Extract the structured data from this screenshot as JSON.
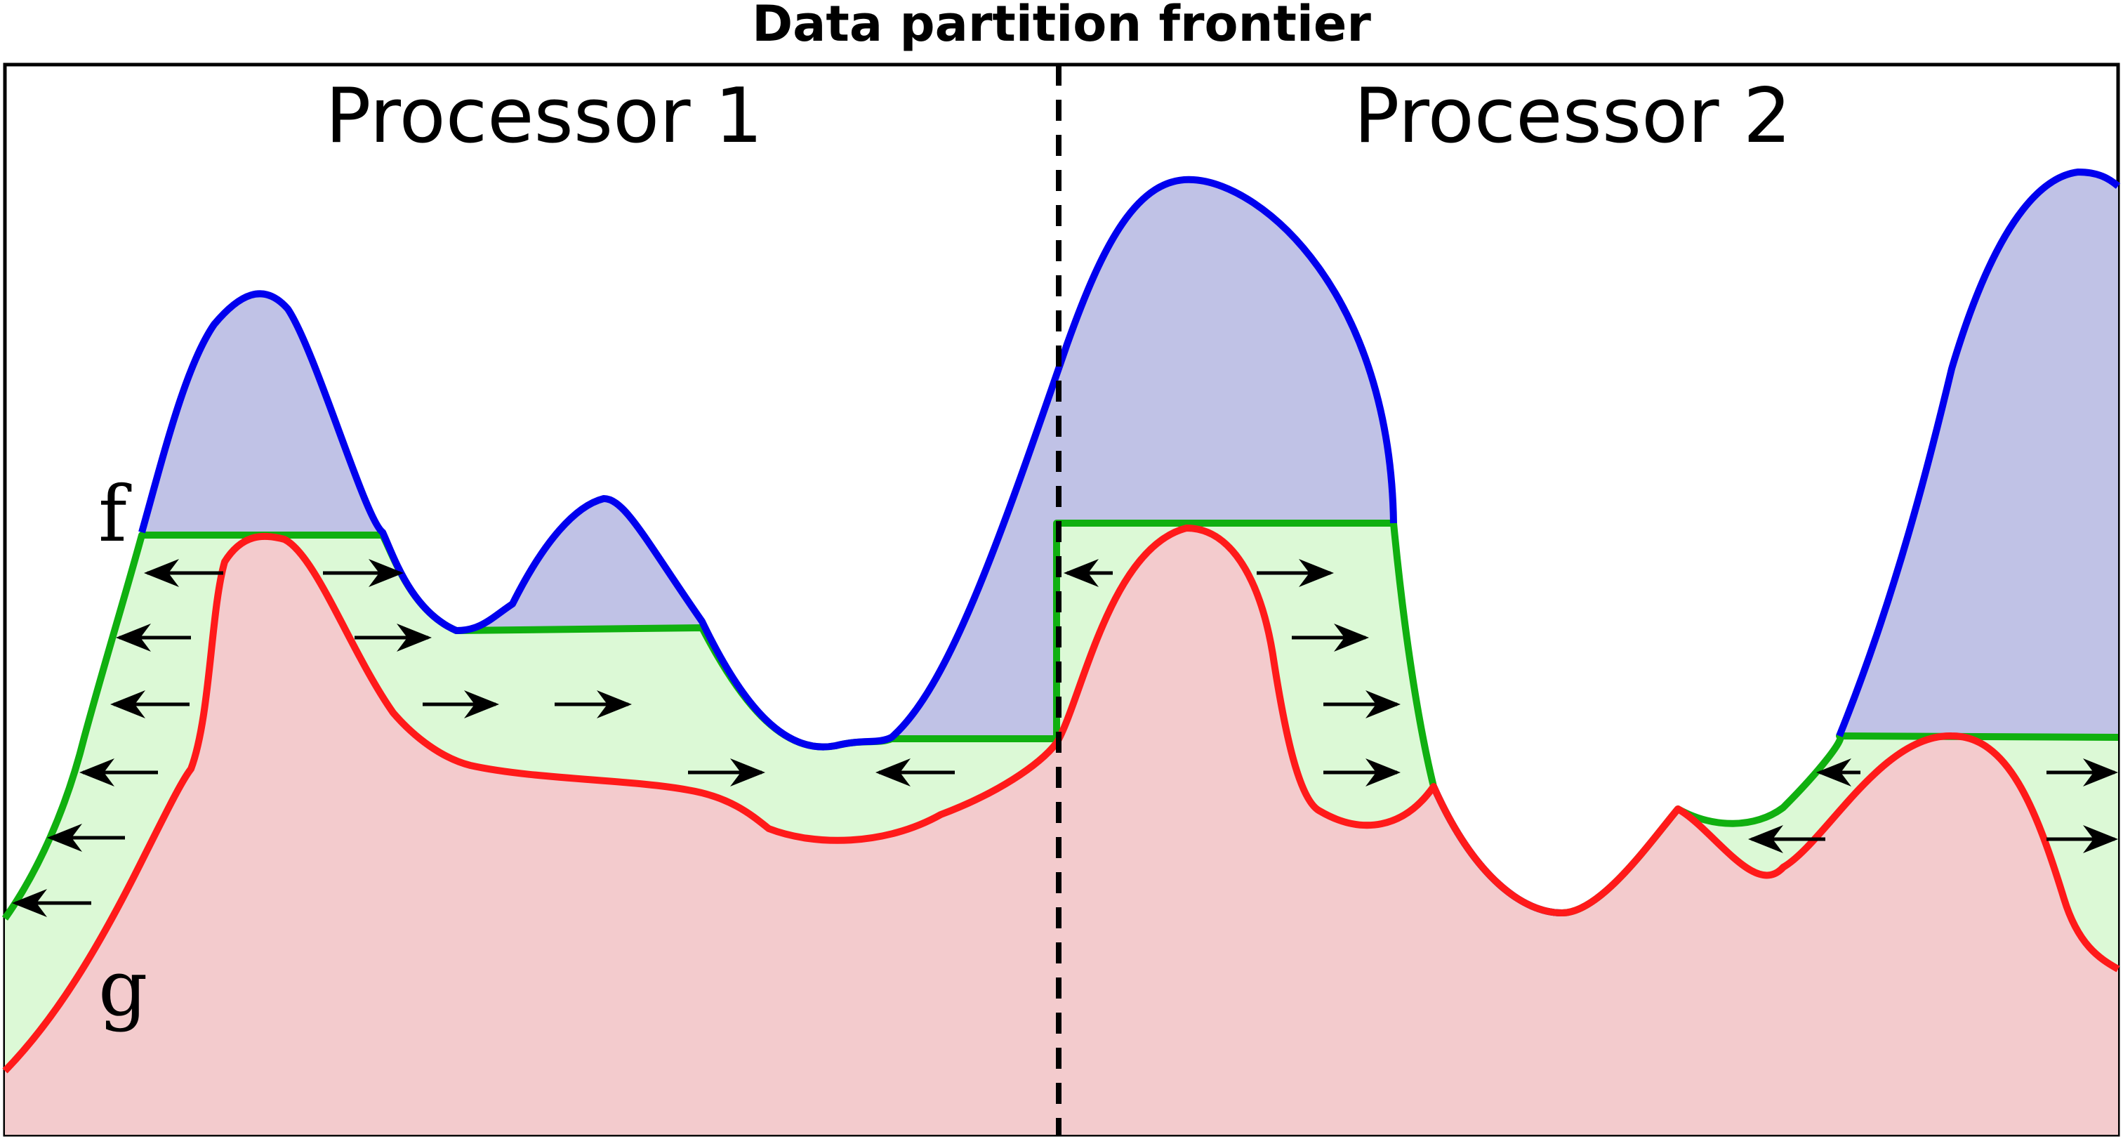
{
  "title": "Data partition frontier",
  "regions": [
    {
      "label": "Processor 1"
    },
    {
      "label": "Processor 2"
    }
  ],
  "curves": {
    "f": {
      "label": "f",
      "color": "#0000ee",
      "fill": "#c0c2e6"
    },
    "g": {
      "label": "g",
      "color": "#ff1a1a",
      "fill": "#f3cbcd"
    },
    "level": {
      "color": "#10b010",
      "fill": "#dcf9d6"
    }
  },
  "partition_line": {
    "color": "#000000",
    "style": "dashed"
  },
  "arrow_color": "#000000"
}
